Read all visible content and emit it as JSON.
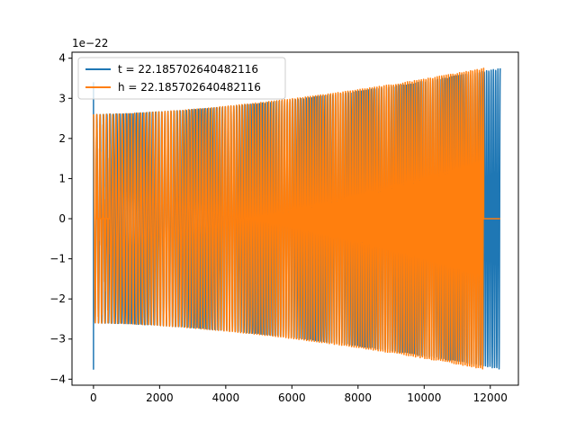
{
  "chart_data": {
    "type": "line",
    "title": "",
    "xlabel": "",
    "ylabel": "",
    "y_offset_label": "1e−22",
    "xlim": [
      -650,
      12850
    ],
    "ylim": [
      -4.15,
      4.15
    ],
    "x_ticks": [
      0,
      2000,
      4000,
      6000,
      8000,
      10000,
      12000
    ],
    "x_tick_labels": [
      "0",
      "2000",
      "4000",
      "6000",
      "8000",
      "10000",
      "12000"
    ],
    "y_ticks": [
      -4,
      -3,
      -2,
      -1,
      0,
      1,
      2,
      3,
      4
    ],
    "y_tick_labels": [
      "−4",
      "−3",
      "−2",
      "−1",
      "0",
      "1",
      "2",
      "3",
      "4"
    ],
    "legend_position": "top-left",
    "grid": false,
    "series": [
      {
        "name": "t = 22.185702640482116",
        "color": "#1f77b4",
        "kind": "chirp",
        "x_start": 0,
        "x_end": 12300,
        "amplitude_start": 2.6,
        "amplitude_end": 3.75,
        "cycles": 150,
        "zero_until": 0,
        "initial_spike": [
          3.4,
          -3.75
        ]
      },
      {
        "name": "h = 22.185702640482116",
        "color": "#ff7f0e",
        "kind": "chirp",
        "x_start": 0,
        "x_end": 11800,
        "amplitude_start": 2.6,
        "amplitude_end": 3.75,
        "cycles": 150,
        "flat_zero_after": [
          11800,
          12300
        ],
        "flat_zero_before": [
          100,
          500
        ]
      }
    ]
  }
}
